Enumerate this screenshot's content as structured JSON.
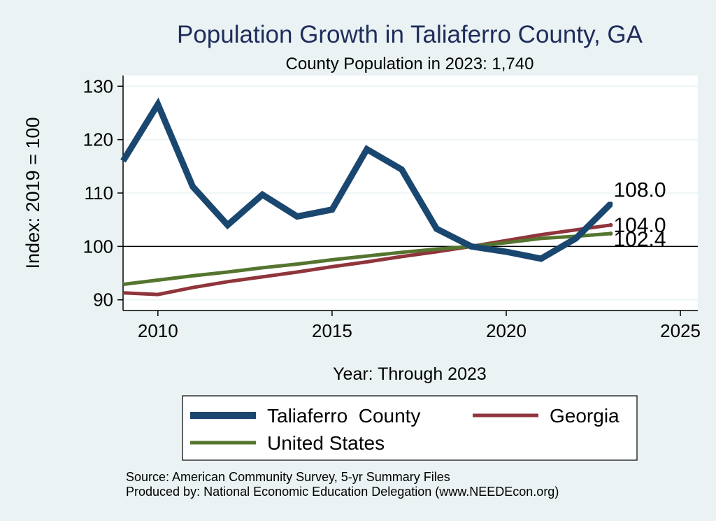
{
  "chart_data": {
    "type": "line",
    "title": "Population Growth in Taliaferro County, GA",
    "subtitle": "County Population in 2023: 1,740",
    "xlabel": "Year: Through 2023",
    "ylabel": "Index: 2019 = 100",
    "xlim": [
      2009,
      2025.5
    ],
    "ylim": [
      88,
      132
    ],
    "xticks": [
      2010,
      2015,
      2020,
      2025
    ],
    "yticks": [
      90,
      100,
      110,
      120,
      130
    ],
    "x_tick_labels": [
      "2010",
      "2015",
      "2020",
      "2025"
    ],
    "y_tick_labels": [
      "90",
      "100",
      "110",
      "120",
      "130"
    ],
    "reference_line": 100,
    "grid": true,
    "series": [
      {
        "name": "Taliaferro  County",
        "color": "#1a476f",
        "x": [
          2009,
          2010,
          2011,
          2012,
          2013,
          2014,
          2015,
          2016,
          2017,
          2018,
          2019,
          2020,
          2021,
          2022,
          2023
        ],
        "values": [
          116.0,
          126.6,
          111.2,
          104.0,
          109.7,
          105.6,
          106.9,
          118.2,
          114.4,
          103.3,
          100.0,
          99.0,
          97.7,
          101.5,
          108.0
        ],
        "end_label": "108.0"
      },
      {
        "name": "Georgia",
        "color": "#90353b",
        "x": [
          2009,
          2010,
          2011,
          2012,
          2013,
          2014,
          2015,
          2016,
          2017,
          2018,
          2019,
          2020,
          2021,
          2022,
          2023
        ],
        "values": [
          91.3,
          91.0,
          92.3,
          93.4,
          94.3,
          95.2,
          96.2,
          97.1,
          98.1,
          99.0,
          100.0,
          101.1,
          102.2,
          103.1,
          104.0
        ],
        "end_label": "104.0"
      },
      {
        "name": "United States",
        "color": "#55752f",
        "x": [
          2009,
          2010,
          2011,
          2012,
          2013,
          2014,
          2015,
          2016,
          2017,
          2018,
          2019,
          2020,
          2021,
          2022,
          2023
        ],
        "values": [
          92.9,
          93.7,
          94.5,
          95.2,
          96.0,
          96.7,
          97.5,
          98.2,
          98.9,
          99.5,
          100.0,
          100.7,
          101.5,
          101.9,
          102.4
        ],
        "end_label": "102.4"
      }
    ],
    "legend_placement": "bottom"
  },
  "footer": {
    "source": "Source: American Community Survey, 5-yr Summary Files",
    "produced_by": "Produced by: National Economic Education Delegation (www.NEEDEcon.org)"
  }
}
